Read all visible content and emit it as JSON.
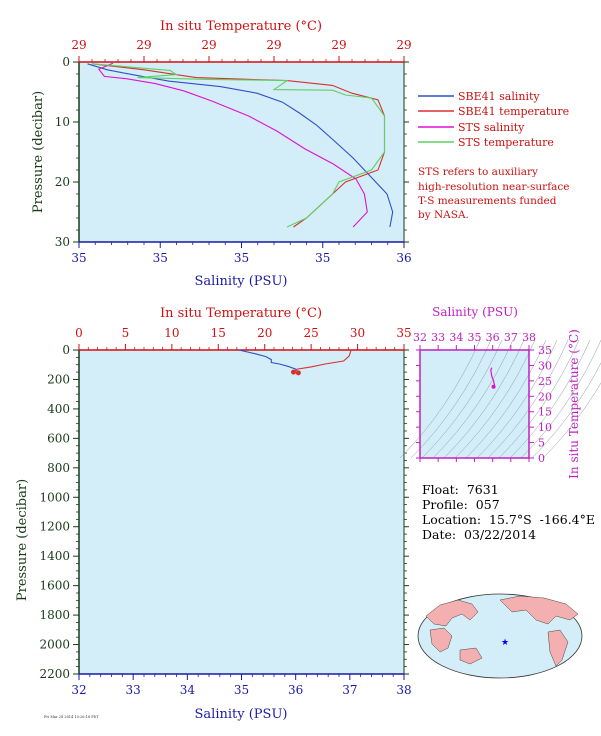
{
  "colors": {
    "plot_bg": "#d3eef8",
    "salinity_axis": "#1a1aa8",
    "temperature_axis": "#d01010",
    "pressure_axis": "#1a3a1a",
    "sbe_salinity": "#3050c8",
    "sbe_temperature": "#d83030",
    "sts_salinity": "#e010d0",
    "sts_temperature": "#60d060",
    "inset_axis": "#c020c0"
  },
  "top_panel": {
    "temp_axis_title": "In situ Temperature (°C)",
    "sal_axis_title": "Salinity (PSU)",
    "pres_axis_title": "Pressure (decibar)",
    "temp_tick_labels": [
      "29",
      "29",
      "29",
      "29",
      "29",
      "29"
    ],
    "sal_tick_labels": [
      "35",
      "35",
      "35",
      "35",
      "36"
    ],
    "pres_tick_labels": [
      "0",
      "10",
      "20",
      "30"
    ]
  },
  "legend": {
    "items": [
      {
        "label": "SBE41 salinity",
        "color": "#3050c8"
      },
      {
        "label": "SBE41 temperature",
        "color": "#d83030"
      },
      {
        "label": "STS salinity",
        "color": "#e010d0"
      },
      {
        "label": "STS temperature",
        "color": "#60d060"
      }
    ],
    "note": [
      "STS refers to auxiliary",
      "high-resolution near-surface",
      "T-S measurements funded",
      "by NASA."
    ]
  },
  "bottom_panel": {
    "temp_axis_title": "In situ Temperature (°C)",
    "sal_axis_title": "Salinity (PSU)",
    "pres_axis_title": "Pressure (decibar)",
    "temp_tick_labels": [
      "0",
      "5",
      "10",
      "15",
      "20",
      "25",
      "30",
      "35"
    ],
    "sal_tick_labels": [
      "32",
      "33",
      "34",
      "35",
      "36",
      "37",
      "38"
    ],
    "pres_tick_labels": [
      "0",
      "200",
      "400",
      "600",
      "800",
      "1000",
      "1200",
      "1400",
      "1600",
      "1800",
      "2000",
      "2200"
    ]
  },
  "inset": {
    "sal_axis_title": "Salinity (PSU)",
    "temp_axis_title": "In situ Temperature (°C)",
    "sal_tick_labels": [
      "32",
      "33",
      "34",
      "35",
      "36",
      "37",
      "38"
    ],
    "temp_tick_labels": [
      "35",
      "30",
      "25",
      "20",
      "15",
      "10",
      "5",
      "0"
    ]
  },
  "float_info": {
    "float": "Float:  7631",
    "profile": "Profile:  057",
    "location": "Location:  15.7°S  -166.4°E",
    "date": "Date:  03/22/2014"
  },
  "footer": {
    "stamp": "Fri Mar 28 2014 10:26:18 PDT"
  },
  "chart_data": [
    {
      "type": "line",
      "title": "",
      "ylabel": "Pressure (decibar)",
      "y_axis_inverted": true,
      "ylim": [
        0,
        30
      ],
      "x_bottom": {
        "label": "Salinity (PSU)",
        "range": [
          34.85,
          36.0
        ]
      },
      "x_top": {
        "label": "In situ Temperature (°C)",
        "range": [
          28.9,
          29.4
        ]
      },
      "series": [
        {
          "name": "SBE41 salinity",
          "axis": "salinity",
          "points": [
            [
              34.88,
              0.3
            ],
            [
              34.95,
              1.3
            ],
            [
              35.05,
              2.2
            ],
            [
              35.17,
              3.2
            ],
            [
              35.35,
              4.1
            ],
            [
              35.48,
              5.2
            ],
            [
              35.57,
              6.7
            ],
            [
              35.63,
              8.5
            ],
            [
              35.69,
              10.5
            ],
            [
              35.75,
              13
            ],
            [
              35.82,
              16
            ],
            [
              35.88,
              19
            ],
            [
              35.94,
              22
            ],
            [
              35.96,
              25
            ],
            [
              35.95,
              27.5
            ]
          ]
        },
        {
          "name": "SBE41 temperature",
          "axis": "temperature",
          "points": [
            [
              28.92,
              0.3
            ],
            [
              29.0,
              1.3
            ],
            [
              29.08,
              2.6
            ],
            [
              29.22,
              3.1
            ],
            [
              29.29,
              3.9
            ],
            [
              29.32,
              5.2
            ],
            [
              29.36,
              6.3
            ],
            [
              29.37,
              9
            ],
            [
              29.37,
              12
            ],
            [
              29.37,
              15
            ],
            [
              29.36,
              18
            ],
            [
              29.31,
              20
            ],
            [
              29.29,
              22
            ],
            [
              29.27,
              24
            ],
            [
              29.25,
              26
            ],
            [
              29.23,
              27.5
            ]
          ]
        },
        {
          "name": "STS salinity",
          "axis": "salinity",
          "points": [
            [
              34.97,
              0.2
            ],
            [
              34.92,
              1.2
            ],
            [
              34.94,
              2.4
            ],
            [
              35.02,
              2.8
            ],
            [
              35.12,
              3.6
            ],
            [
              35.22,
              4.8
            ],
            [
              35.32,
              6.5
            ],
            [
              35.45,
              9
            ],
            [
              35.55,
              11.5
            ],
            [
              35.65,
              14.5
            ],
            [
              35.75,
              17
            ],
            [
              35.83,
              19.5
            ],
            [
              35.86,
              22
            ],
            [
              35.87,
              25
            ],
            [
              35.82,
              27.5
            ]
          ]
        },
        {
          "name": "STS temperature",
          "axis": "temperature",
          "points": [
            [
              28.92,
              0.3
            ],
            [
              29.04,
              1.4
            ],
            [
              29.05,
              2.1
            ],
            [
              28.99,
              2.6
            ],
            [
              29.1,
              2.9
            ],
            [
              29.22,
              3.1
            ],
            [
              29.2,
              4.6
            ],
            [
              29.29,
              4.7
            ],
            [
              29.31,
              5.5
            ],
            [
              29.35,
              6
            ],
            [
              29.37,
              9
            ],
            [
              29.37,
              12
            ],
            [
              29.37,
              15
            ],
            [
              29.35,
              18
            ],
            [
              29.3,
              20
            ],
            [
              29.29,
              22
            ],
            [
              29.27,
              24
            ],
            [
              29.25,
              26
            ],
            [
              29.22,
              27.5
            ]
          ]
        }
      ]
    },
    {
      "type": "line",
      "ylabel": "Pressure (decibar)",
      "y_axis_inverted": true,
      "ylim": [
        0,
        2200
      ],
      "x_bottom": {
        "label": "Salinity (PSU)",
        "range": [
          32,
          38
        ]
      },
      "x_top": {
        "label": "In situ Temperature (°C)",
        "range": [
          0,
          35
        ]
      },
      "series": [
        {
          "name": "SBE41 salinity",
          "axis": "salinity",
          "points": [
            [
              34.95,
              0
            ],
            [
              35.25,
              25
            ],
            [
              35.45,
              45
            ],
            [
              35.55,
              65
            ],
            [
              35.55,
              85
            ],
            [
              35.7,
              95
            ],
            [
              35.85,
              110
            ],
            [
              36.0,
              130
            ],
            [
              36.05,
              155
            ]
          ]
        },
        {
          "name": "SBE41 temperature",
          "axis": "temperature",
          "points": [
            [
              29.3,
              0
            ],
            [
              29.1,
              40
            ],
            [
              28.5,
              75
            ],
            [
              26.5,
              95
            ],
            [
              25.0,
              115
            ],
            [
              23.5,
              130
            ],
            [
              23.1,
              150
            ]
          ]
        }
      ]
    },
    {
      "type": "scatter",
      "xlabel": "Salinity (PSU)",
      "ylabel": "In situ Temperature (°C)",
      "xlim": [
        32,
        38
      ],
      "ylim": [
        0,
        35
      ],
      "series": [
        {
          "name": "T-S profile",
          "points": [
            [
              35.95,
              29.3
            ],
            [
              35.9,
              28.5
            ],
            [
              35.95,
              26.5
            ],
            [
              36.05,
              25.0
            ],
            [
              36.1,
              23.5
            ],
            [
              36.05,
              23.1
            ]
          ]
        }
      ]
    }
  ]
}
